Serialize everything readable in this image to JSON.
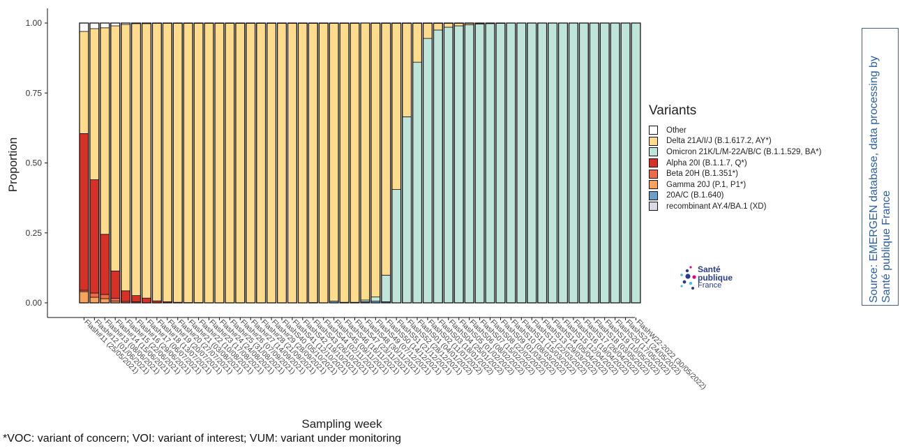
{
  "legend": {
    "title": "Variants",
    "items": [
      {
        "label": "Other",
        "color": "#ffffff"
      },
      {
        "label": "Delta 21A/I/J (B.1.617.2, AY*)",
        "color": "#fedc8b"
      },
      {
        "label": "Omicron 21K/L/M-22A/B/C (B.1.1.529, BA*)",
        "color": "#bfe4d9"
      },
      {
        "label": "Alpha 20I (B.1.1.7, Q*)",
        "color": "#d73027"
      },
      {
        "label": "Beta 20H (B.1.351*)",
        "color": "#ef6a45"
      },
      {
        "label": "Gamma 20J (P.1, P1*)",
        "color": "#f9a25a"
      },
      {
        "label": "20A/C (B.1.640)",
        "color": "#6a9fca"
      },
      {
        "label": "recombinant AY.4/BA.1 (XD)",
        "color": "#d9d9e8"
      }
    ]
  },
  "logo": {
    "line1": "Santé",
    "line2": "publique",
    "line3": "France"
  },
  "source": "Source: EMERGEN database, data processing by Santé publique France",
  "footnote": "*VOC: variant of concern; VOI: variant of interest; VUM: variant under monitoring",
  "chart_data": {
    "type": "bar",
    "stacked": true,
    "xlabel": "Sampling week",
    "ylabel": "Proportion",
    "ylim": [
      0,
      1
    ],
    "yticks": [
      "0.00",
      "0.25",
      "0.50",
      "0.75",
      "1.00"
    ],
    "categories": [
      "Flash#11 (25/05/2021)",
      "Flash#12 (01/06/2021)",
      "Flash#13 (08/06/2021)",
      "Flash#14 (15/06/2021)",
      "Flash#15 (22/06/2021)",
      "Flash#16 (29/06/2021)",
      "Flash#17 (06/07/2021)",
      "Flash#18 (13/07/2021)",
      "Flash#19 (20/07/2021)",
      "Flash#20 (27/07/2021)",
      "Flash#21 (03/08/2021)",
      "Flash#22 (10/08/2021)",
      "Flash#23 (17/08/2021)",
      "Flash#24 (24/08/2021)",
      "Flash#25 (31/08/2021)",
      "Flash#26 (07/09/2021)",
      "Flash#27 (14/09/2021)",
      "Flash#28 (21/09/2021)",
      "Flash#29 (28/09/2021)",
      "FlashS40 (05/10/2021)",
      "FlashS41 (12/10/2021)",
      "FlashS42 (19/10/2021)",
      "FlashS43 (26/10/2021)",
      "FlashS44 (02/11/2021)",
      "FlashS45 (09/11/2021)",
      "FlashS46 (16/11/2021)",
      "FlashS47 (23/11/2021)",
      "FlashS48 (30/11/2021)",
      "FlashS49 (07/12/2021)",
      "FlashS50 (14/12/2021)",
      "FlashS51 (21/12/2021)",
      "FlashS52 (28/12/2021)",
      "FlashS01 (04/01/2022)",
      "FlashS02 (11/01/2022)",
      "FlashS03 (18/01/2022)",
      "FlashS04 (25/01/2022)",
      "FlashS05 (01/02/2022)",
      "FlashS06 (08/02/2022)",
      "FlashS07 (15/02/2022)",
      "FlashS08 (22/02/2022)",
      "FlashS09 (01/03/2022)",
      "FlashS10 (08/03/2022)",
      "FlashS11 (15/03/2022)",
      "FlashS12 (22/03/2022)",
      "FlashS13 (29/03/2022)",
      "FlashS14 (05/04/2022)",
      "FlashS15 (12/04/2022)",
      "FlashS16 (19/04/2022)",
      "FlashS17 (26/04/2022)",
      "FlashS18 (03/05/2022)",
      "FlashS19 (10/05/2022)",
      "FlashS20 (17/05/2022)",
      "FlashS21 (24/05/2022)",
      "FlashW22-2022 (30/05/2022)"
    ],
    "series": [
      {
        "name": "Gamma 20J (P.1, P1*)",
        "color": "#f9a25a",
        "values": [
          0.04,
          0.02,
          0.015,
          0.006,
          0,
          0,
          0,
          0,
          0,
          0,
          0,
          0,
          0,
          0,
          0,
          0,
          0,
          0,
          0,
          0,
          0,
          0,
          0,
          0,
          0,
          0,
          0,
          0,
          0,
          0,
          0,
          0,
          0,
          0,
          0,
          0,
          0,
          0,
          0,
          0,
          0,
          0,
          0,
          0,
          0,
          0,
          0,
          0,
          0,
          0,
          0,
          0,
          0,
          0
        ]
      },
      {
        "name": "Beta 20H (B.1.351*)",
        "color": "#ef6a45",
        "values": [
          0.005,
          0.015,
          0.015,
          0.01,
          0.005,
          0.004,
          0,
          0,
          0,
          0,
          0,
          0,
          0,
          0,
          0,
          0,
          0,
          0,
          0,
          0,
          0,
          0,
          0,
          0,
          0,
          0,
          0,
          0,
          0,
          0,
          0,
          0,
          0,
          0,
          0,
          0,
          0,
          0,
          0,
          0,
          0,
          0,
          0,
          0,
          0,
          0,
          0,
          0,
          0,
          0,
          0,
          0,
          0,
          0
        ]
      },
      {
        "name": "Alpha 20I (B.1.1.7, Q*)",
        "color": "#d73027",
        "values": [
          0.56,
          0.405,
          0.215,
          0.098,
          0.038,
          0.022,
          0.017,
          0.007,
          0.004,
          0.002,
          0.001,
          0.001,
          0,
          0,
          0,
          0,
          0,
          0,
          0,
          0,
          0,
          0,
          0,
          0,
          0,
          0,
          0,
          0,
          0,
          0,
          0,
          0,
          0,
          0,
          0,
          0,
          0,
          0,
          0,
          0,
          0,
          0,
          0,
          0,
          0,
          0,
          0,
          0,
          0,
          0,
          0,
          0,
          0,
          0
        ]
      },
      {
        "name": "20A/C (B.1.640)",
        "color": "#6a9fca",
        "values": [
          0,
          0,
          0,
          0,
          0,
          0,
          0,
          0,
          0,
          0,
          0,
          0,
          0,
          0,
          0,
          0,
          0,
          0,
          0,
          0,
          0,
          0,
          0.001,
          0,
          0.006,
          0.002,
          0.002,
          0.004,
          0.006,
          0.004,
          0,
          0,
          0,
          0,
          0,
          0,
          0,
          0,
          0,
          0,
          0,
          0,
          0,
          0,
          0,
          0,
          0,
          0,
          0,
          0,
          0,
          0,
          0,
          0
        ]
      },
      {
        "name": "Omicron 21K/L/M-22A/B/C (B.1.1.529, BA*)",
        "color": "#bfe4d9",
        "values": [
          0,
          0,
          0,
          0,
          0,
          0,
          0,
          0,
          0,
          0,
          0,
          0,
          0,
          0,
          0,
          0,
          0,
          0,
          0,
          0,
          0,
          0,
          0,
          0,
          0,
          0,
          0,
          0.006,
          0.015,
          0.095,
          0.405,
          0.665,
          0.86,
          0.945,
          0.975,
          0.985,
          0.99,
          0.994,
          0.996,
          0.998,
          0.999,
          1,
          1,
          1,
          1,
          1,
          1,
          1,
          1,
          1,
          1,
          1,
          1,
          1
        ]
      },
      {
        "name": "Delta 21A/I/J (B.1.617.2, AY*)",
        "color": "#fedc8b",
        "values": [
          0.365,
          0.54,
          0.738,
          0.876,
          0.952,
          0.972,
          0.981,
          0.992,
          0.995,
          0.997,
          0.998,
          0.998,
          0.999,
          0.999,
          0.999,
          0.999,
          0.999,
          0.999,
          0.999,
          0.999,
          0.999,
          0.999,
          0.998,
          0.999,
          0.993,
          0.997,
          0.997,
          0.99,
          0.978,
          0.9,
          0.594,
          0.334,
          0.139,
          0.054,
          0.024,
          0.014,
          0.009,
          0.005,
          0.003,
          0.001,
          0,
          0,
          0,
          0,
          0,
          0,
          0,
          0,
          0,
          0,
          0,
          0,
          0,
          0
        ]
      },
      {
        "name": "Other",
        "color": "#ffffff",
        "values": [
          0.03,
          0.02,
          0.017,
          0.01,
          0.005,
          0.002,
          0.002,
          0.001,
          0.001,
          0.001,
          0.001,
          0.001,
          0.001,
          0.001,
          0.001,
          0.001,
          0.001,
          0.001,
          0.001,
          0.001,
          0.001,
          0.001,
          0.001,
          0.001,
          0.001,
          0.001,
          0.001,
          0,
          0.001,
          0.001,
          0.001,
          0.001,
          0.001,
          0.001,
          0.001,
          0.001,
          0.001,
          0.001,
          0.001,
          0.001,
          0.001,
          0,
          0,
          0,
          0,
          0,
          0,
          0,
          0,
          0,
          0,
          0,
          0,
          0
        ]
      }
    ]
  }
}
